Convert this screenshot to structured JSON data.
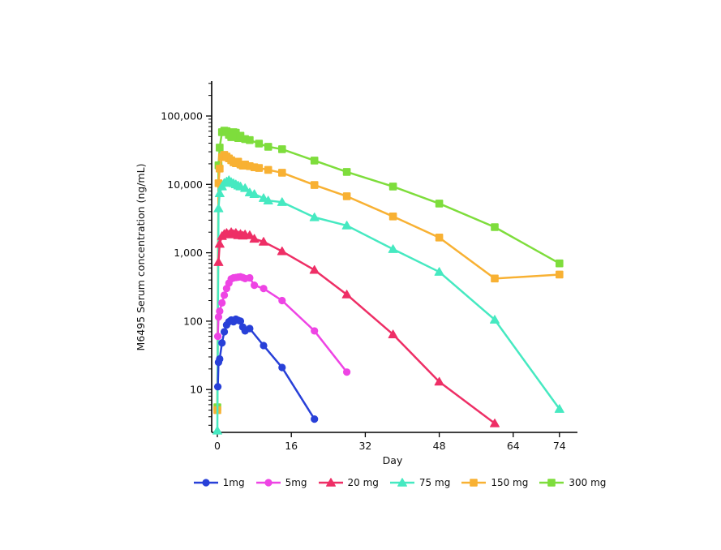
{
  "chart_data": {
    "type": "line",
    "title": "",
    "xlabel": "Day",
    "ylabel": "M6495 Serum concentration (ng/mL)",
    "grid": false,
    "legend_position": "bottom",
    "x_axis": {
      "ticks": [
        0,
        16,
        32,
        48,
        64,
        74
      ],
      "tick_labels": [
        "0",
        "16",
        "32",
        "48",
        "64",
        "74"
      ],
      "range": [
        0,
        78
      ]
    },
    "y_axis": {
      "scale": "log",
      "ticks": [
        10,
        100,
        1000,
        10000,
        100000
      ],
      "tick_labels": [
        "10",
        "100",
        "1,000",
        "10,000",
        "100,000"
      ],
      "minor_ticks": true,
      "range": [
        2.4,
        320000
      ]
    },
    "series": [
      {
        "name": "1mg",
        "color": "#2840d8",
        "marker": "circle",
        "points": [
          [
            0.1,
            11
          ],
          [
            0.25,
            25
          ],
          [
            0.5,
            28
          ],
          [
            1,
            48
          ],
          [
            1.5,
            70
          ],
          [
            2,
            88
          ],
          [
            2.5,
            98
          ],
          [
            3,
            104
          ],
          [
            3.5,
            98
          ],
          [
            4,
            107
          ],
          [
            4.5,
            103
          ],
          [
            5,
            100
          ],
          [
            5.5,
            82
          ],
          [
            6,
            72
          ],
          [
            7,
            78
          ],
          [
            10,
            44
          ],
          [
            14,
            21
          ],
          [
            21,
            3.7
          ]
        ]
      },
      {
        "name": "5mg",
        "color": "#ee44e4",
        "marker": "circle",
        "points": [
          [
            0.1,
            60
          ],
          [
            0.25,
            115
          ],
          [
            0.5,
            140
          ],
          [
            1,
            185
          ],
          [
            1.5,
            240
          ],
          [
            2,
            300
          ],
          [
            2.5,
            360
          ],
          [
            3,
            415
          ],
          [
            3.5,
            430
          ],
          [
            4,
            435
          ],
          [
            4.5,
            440
          ],
          [
            5,
            445
          ],
          [
            5.5,
            435
          ],
          [
            6,
            420
          ],
          [
            7,
            430
          ],
          [
            8,
            335
          ],
          [
            10,
            300
          ],
          [
            14,
            200
          ],
          [
            21,
            72
          ],
          [
            28,
            18
          ]
        ]
      },
      {
        "name": "20 mg",
        "color": "#ee2f66",
        "marker": "triangle",
        "points": [
          [
            0.25,
            730
          ],
          [
            0.5,
            1350
          ],
          [
            1,
            1750
          ],
          [
            1.5,
            1880
          ],
          [
            2,
            1950
          ],
          [
            2.5,
            1850
          ],
          [
            3,
            2000
          ],
          [
            3.5,
            1880
          ],
          [
            4,
            1950
          ],
          [
            4.5,
            1800
          ],
          [
            5,
            1880
          ],
          [
            5.5,
            1780
          ],
          [
            6,
            1850
          ],
          [
            7,
            1800
          ],
          [
            8,
            1600
          ],
          [
            10,
            1450
          ],
          [
            14,
            1050
          ],
          [
            21,
            560
          ],
          [
            28,
            245
          ],
          [
            38,
            64
          ],
          [
            48,
            13
          ],
          [
            60,
            3.2
          ]
        ]
      },
      {
        "name": "75 mg",
        "color": "#46e9c1",
        "marker": "triangle",
        "points": [
          [
            0,
            2.5
          ],
          [
            0.25,
            4450
          ],
          [
            0.5,
            7400
          ],
          [
            1,
            9300
          ],
          [
            1.5,
            10500
          ],
          [
            2,
            11000
          ],
          [
            2.5,
            11500
          ],
          [
            3,
            10800
          ],
          [
            3.5,
            10400
          ],
          [
            4,
            10000
          ],
          [
            4.5,
            9600
          ],
          [
            5,
            9300
          ],
          [
            6,
            8800
          ],
          [
            7,
            7600
          ],
          [
            8,
            7200
          ],
          [
            10,
            6300
          ],
          [
            11,
            5800
          ],
          [
            14,
            5500
          ],
          [
            21,
            3300
          ],
          [
            28,
            2500
          ],
          [
            38,
            1130
          ],
          [
            48,
            525
          ],
          [
            60,
            105
          ],
          [
            74,
            5.2
          ]
        ]
      },
      {
        "name": "150 mg",
        "color": "#f8b133",
        "marker": "square",
        "points": [
          [
            0,
            5
          ],
          [
            0.25,
            10400
          ],
          [
            0.5,
            17000
          ],
          [
            1,
            25000
          ],
          [
            1.5,
            27000
          ],
          [
            2,
            25500
          ],
          [
            2.5,
            24000
          ],
          [
            3,
            22500
          ],
          [
            3.5,
            21000
          ],
          [
            4,
            20400
          ],
          [
            4.5,
            21500
          ],
          [
            5,
            19500
          ],
          [
            5.5,
            18800
          ],
          [
            6,
            19500
          ],
          [
            7,
            18500
          ],
          [
            8,
            17800
          ],
          [
            9,
            17400
          ],
          [
            11,
            16300
          ],
          [
            14,
            14800
          ],
          [
            21,
            9800
          ],
          [
            28,
            6700
          ],
          [
            38,
            3400
          ],
          [
            48,
            1670
          ],
          [
            60,
            420
          ],
          [
            74,
            480
          ]
        ]
      },
      {
        "name": "300 mg",
        "color": "#7edd3c",
        "marker": "square",
        "points": [
          [
            0,
            5.5
          ],
          [
            0.25,
            19000
          ],
          [
            0.5,
            34500
          ],
          [
            1,
            58000
          ],
          [
            1.5,
            61000
          ],
          [
            2,
            60000
          ],
          [
            2.5,
            53000
          ],
          [
            3,
            49000
          ],
          [
            3.5,
            58000
          ],
          [
            4,
            57000
          ],
          [
            4.5,
            47500
          ],
          [
            5,
            51500
          ],
          [
            6,
            46000
          ],
          [
            7,
            44500
          ],
          [
            9,
            39500
          ],
          [
            11,
            35500
          ],
          [
            14,
            32700
          ],
          [
            21,
            22300
          ],
          [
            28,
            15200
          ],
          [
            38,
            9300
          ],
          [
            48,
            5250
          ],
          [
            60,
            2370
          ],
          [
            74,
            700
          ]
        ]
      }
    ]
  }
}
